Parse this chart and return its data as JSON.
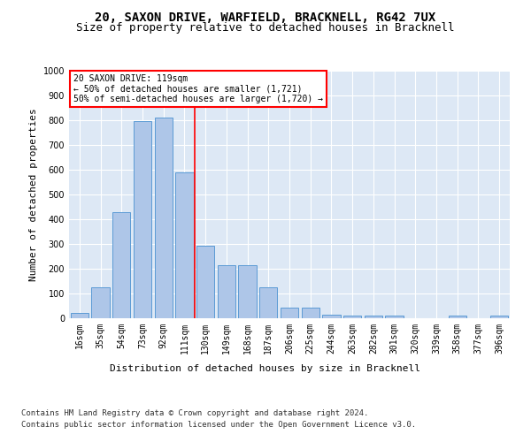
{
  "title1": "20, SAXON DRIVE, WARFIELD, BRACKNELL, RG42 7UX",
  "title2": "Size of property relative to detached houses in Bracknell",
  "xlabel": "Distribution of detached houses by size in Bracknell",
  "ylabel": "Number of detached properties",
  "categories": [
    "16sqm",
    "35sqm",
    "54sqm",
    "73sqm",
    "92sqm",
    "111sqm",
    "130sqm",
    "149sqm",
    "168sqm",
    "187sqm",
    "206sqm",
    "225sqm",
    "244sqm",
    "263sqm",
    "282sqm",
    "301sqm",
    "320sqm",
    "339sqm",
    "358sqm",
    "377sqm",
    "396sqm"
  ],
  "values": [
    20,
    125,
    430,
    795,
    810,
    590,
    293,
    213,
    213,
    125,
    42,
    42,
    15,
    12,
    10,
    10,
    0,
    0,
    10,
    0,
    10
  ],
  "bar_color": "#aec6e8",
  "bar_edge_color": "#5b9bd5",
  "vline_x": 5.5,
  "vline_color": "red",
  "annotation_text": "20 SAXON DRIVE: 119sqm\n← 50% of detached houses are smaller (1,721)\n50% of semi-detached houses are larger (1,720) →",
  "annotation_box_color": "white",
  "annotation_box_edge_color": "red",
  "ylim": [
    0,
    1000
  ],
  "yticks": [
    0,
    100,
    200,
    300,
    400,
    500,
    600,
    700,
    800,
    900,
    1000
  ],
  "background_color": "#dde8f5",
  "footer_line1": "Contains HM Land Registry data © Crown copyright and database right 2024.",
  "footer_line2": "Contains public sector information licensed under the Open Government Licence v3.0.",
  "title1_fontsize": 10,
  "title2_fontsize": 9,
  "axis_label_fontsize": 8,
  "tick_fontsize": 7,
  "footer_fontsize": 6.5,
  "ylabel_fontsize": 8
}
